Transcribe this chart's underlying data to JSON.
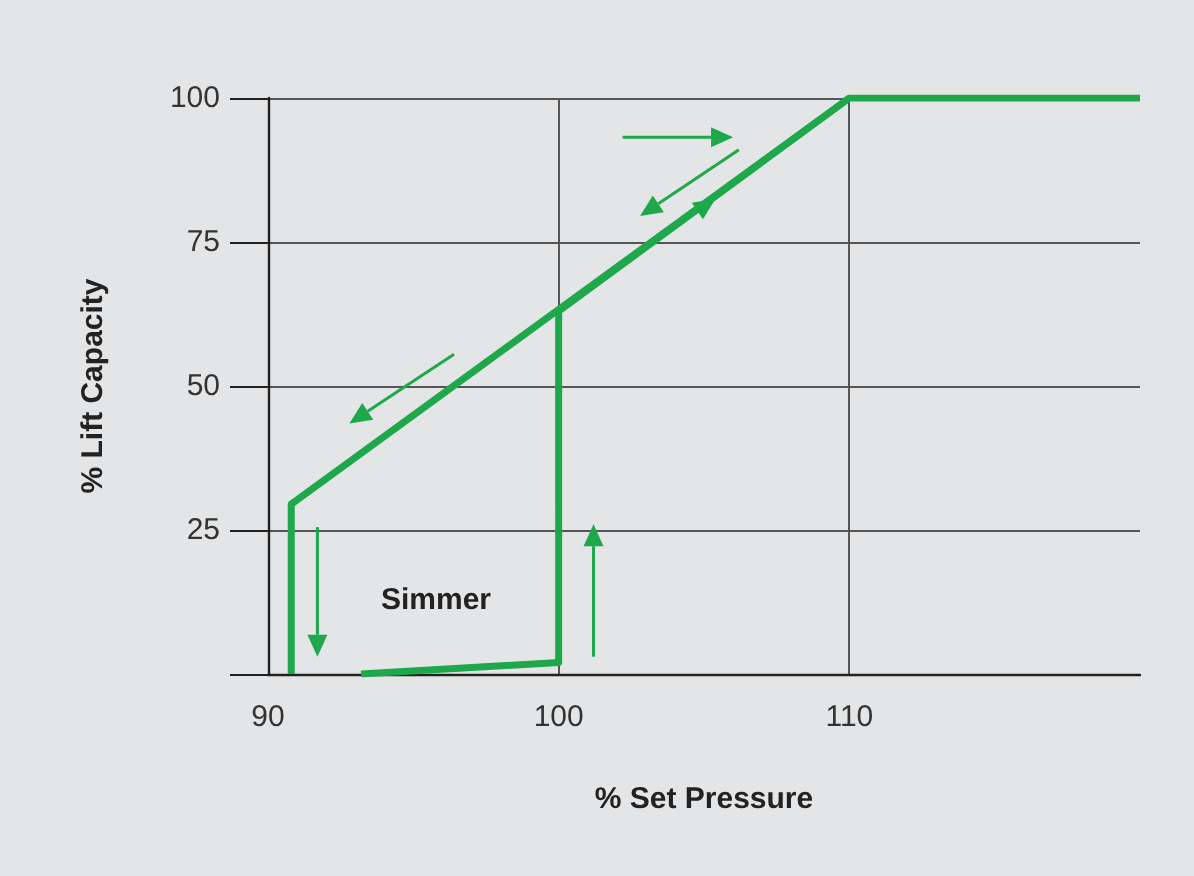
{
  "chart_data": {
    "type": "line",
    "xlabel": "% Set Pressure",
    "ylabel": "% Lift Capacity",
    "xlim": [
      90,
      120
    ],
    "xticks": [
      90,
      100,
      110
    ],
    "ylim": [
      0,
      100
    ],
    "yticks": [
      {
        "value": 0,
        "label": null
      },
      25,
      50,
      75,
      100
    ],
    "grid": true,
    "marker": "none",
    "line_style": "solid",
    "series": [
      {
        "color": "#1ea84b",
        "x": [
          93.2,
          100,
          100,
          110,
          120
        ],
        "values": [
          0,
          2,
          63,
          100,
          100
        ]
      },
      {
        "color": "#1ea84b",
        "x": [
          110,
          90.8,
          90.8
        ],
        "values": [
          100,
          29.5,
          0
        ]
      }
    ],
    "annotations": [
      "Simmer"
    ]
  }
}
